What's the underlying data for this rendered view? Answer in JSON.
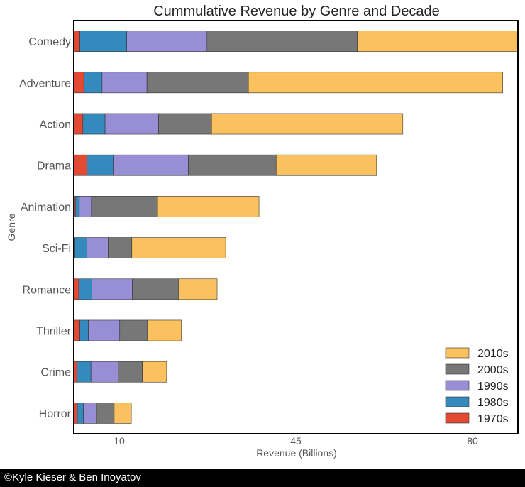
{
  "chart_data": {
    "type": "bar",
    "orientation": "horizontal",
    "stacked": true,
    "title": "Cummulative Revenue by Genre and Decade",
    "xlabel": "Revenue (Billions)",
    "ylabel": "Genre",
    "xlim": [
      1,
      89
    ],
    "xticks": [
      10,
      45,
      80
    ],
    "grid": false,
    "legend_position": "bottom-right",
    "categories": [
      "Comedy",
      "Adventure",
      "Action",
      "Drama",
      "Animation",
      "Sci-Fi",
      "Romance",
      "Thriller",
      "Crime",
      "Horror"
    ],
    "series": [
      {
        "name": "1970s",
        "color": "#e24a33",
        "values": [
          1.2,
          2.0,
          1.8,
          2.6,
          0.3,
          0.2,
          1.0,
          1.2,
          0.6,
          0.7
        ]
      },
      {
        "name": "1980s",
        "color": "#348abd",
        "values": [
          9.3,
          3.6,
          4.4,
          5.2,
          0.8,
          2.4,
          2.6,
          1.7,
          2.8,
          1.2
        ]
      },
      {
        "name": "1990s",
        "color": "#988ed5",
        "values": [
          15.9,
          8.9,
          10.6,
          14.9,
          2.4,
          4.2,
          8.0,
          6.2,
          5.4,
          2.6
        ]
      },
      {
        "name": "2000s",
        "color": "#777777",
        "values": [
          29.8,
          20.1,
          10.5,
          17.4,
          13.1,
          4.7,
          9.2,
          5.5,
          4.8,
          3.5
        ]
      },
      {
        "name": "2010s",
        "color": "#fbc15e",
        "values": [
          31.9,
          50.4,
          37.9,
          19.9,
          20.1,
          18.6,
          7.6,
          6.7,
          4.8,
          3.4
        ]
      }
    ],
    "legend_entries": [
      "2010s",
      "2000s",
      "1990s",
      "1980s",
      "1970s"
    ]
  },
  "footer": {
    "credit": "©Kyle Kieser & Ben Inoyatov"
  }
}
